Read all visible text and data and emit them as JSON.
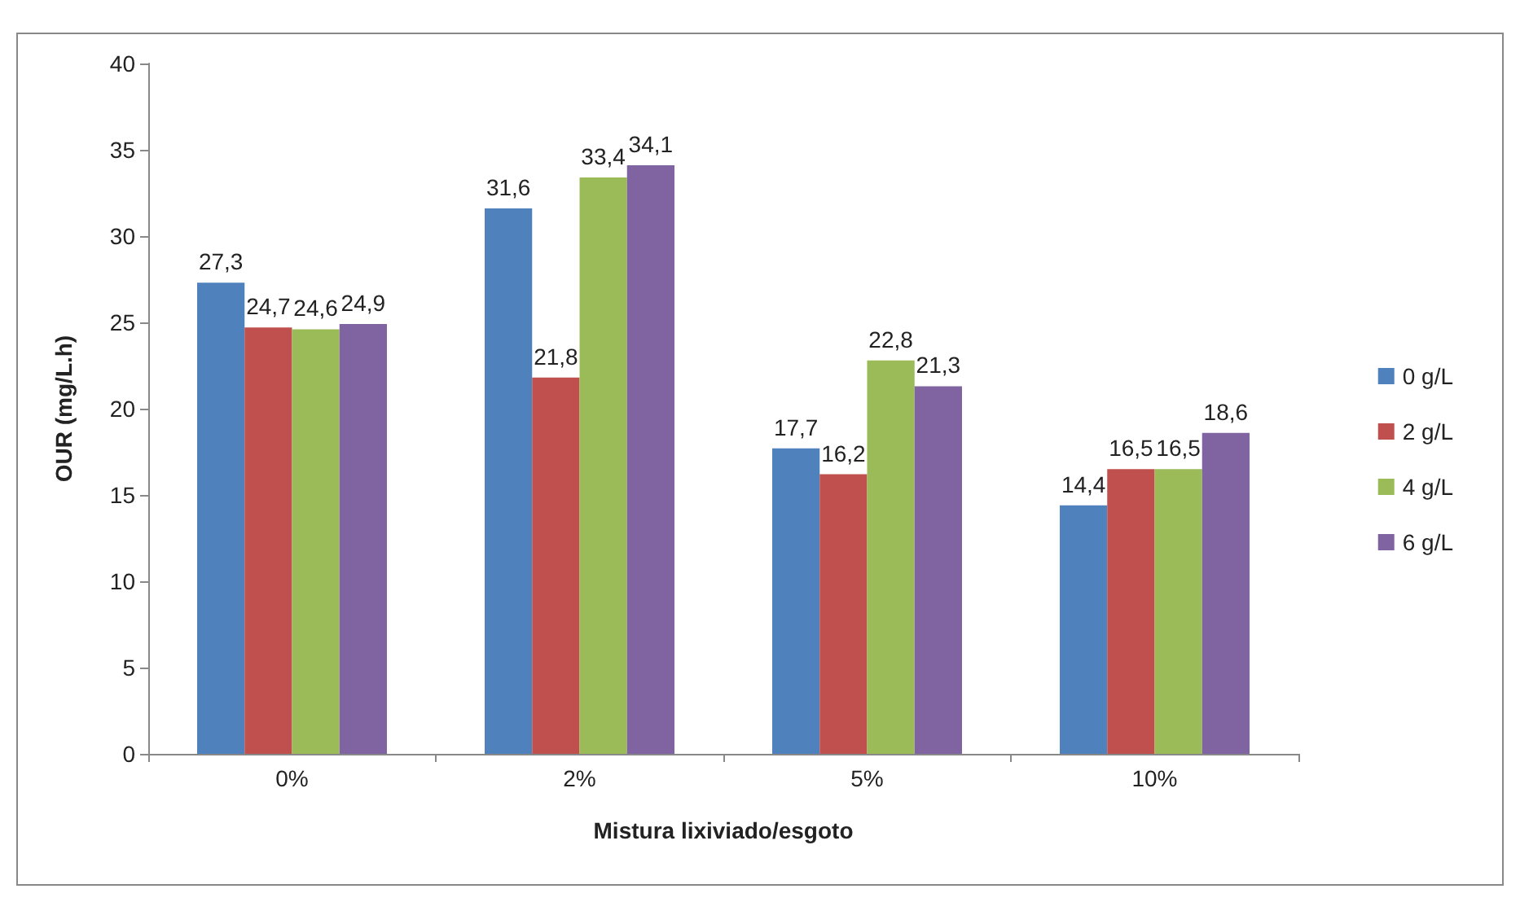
{
  "chart_data": {
    "type": "bar",
    "xlabel": "Mistura lixiviado/esgoto",
    "ylabel": "OUR (mg/L.h)",
    "categories": [
      "0%",
      "2%",
      "5%",
      "10%"
    ],
    "series": [
      {
        "name": "0 g/L",
        "color": "#4f81bd",
        "values": [
          27.3,
          31.6,
          17.7,
          14.4
        ],
        "value_labels": [
          "27,3",
          "31,6",
          "17,7",
          "14,4"
        ]
      },
      {
        "name": "2 g/L",
        "color": "#c0504d",
        "values": [
          24.7,
          21.8,
          16.2,
          16.5
        ],
        "value_labels": [
          "24,7",
          "21,8",
          "16,2",
          "16,5"
        ]
      },
      {
        "name": "4 g/L",
        "color": "#9bbb59",
        "values": [
          24.6,
          33.4,
          22.8,
          16.5
        ],
        "value_labels": [
          "24,6",
          "33,4",
          "22,8",
          "16,5"
        ]
      },
      {
        "name": "6 g/L",
        "color": "#8064a2",
        "values": [
          24.9,
          34.1,
          21.3,
          18.6
        ],
        "value_labels": [
          "24,9",
          "34,1",
          "21,3",
          "18,6"
        ]
      }
    ],
    "ylim": [
      0,
      40
    ],
    "yticks": [
      0,
      5,
      10,
      15,
      20,
      25,
      30,
      35,
      40
    ],
    "grid": false,
    "legend": "right"
  }
}
